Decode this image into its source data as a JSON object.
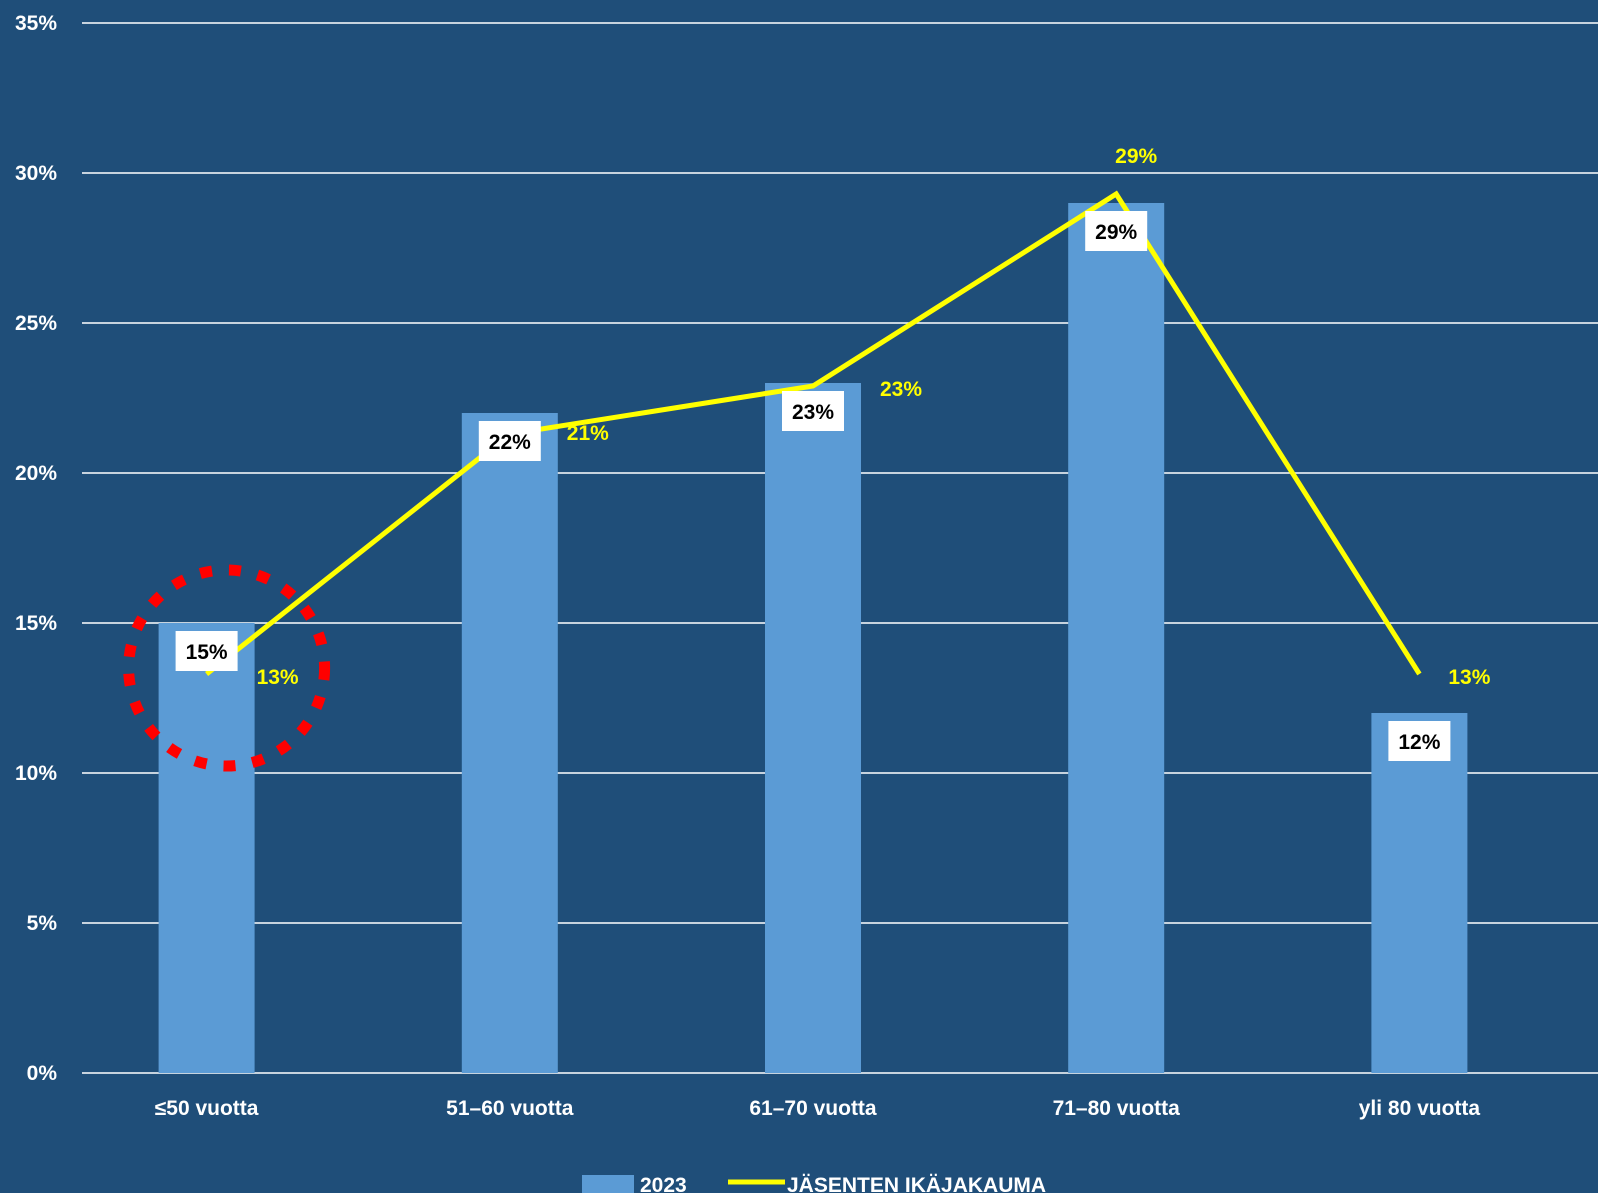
{
  "chart_data": {
    "type": "bar",
    "categories": [
      "≤50 vuotta",
      "51–60 vuotta",
      "61–70 vuotta",
      "71–80 vuotta",
      "yli 80 vuotta"
    ],
    "series": [
      {
        "name": "2023",
        "type": "bar",
        "values": [
          15,
          22,
          23,
          29,
          12
        ],
        "labels": [
          "15%",
          "22%",
          "23%",
          "29%",
          "12%"
        ],
        "color": "#5b9bd5"
      },
      {
        "name": "JÄSENTEN IKÄJAKAUMA",
        "type": "line",
        "values": [
          13.3,
          21.3,
          22.9,
          29.3,
          13.3
        ],
        "labels": [
          "13%",
          "21%",
          "23%",
          "29%",
          "13%"
        ],
        "color": "#ffff00"
      }
    ],
    "yticks": [
      "0%",
      "5%",
      "10%",
      "15%",
      "20%",
      "25%",
      "30%",
      "35%"
    ],
    "ylim": [
      0,
      35
    ],
    "grid": true,
    "legend_position": "bottom",
    "annotation": {
      "shape": "dotted-circle",
      "color": "#ff0000",
      "category_index": 0,
      "y_value": 13.5
    },
    "colors": {
      "background": "#1f4e79",
      "grid": "#ffffff",
      "text": "#ffffff"
    }
  }
}
